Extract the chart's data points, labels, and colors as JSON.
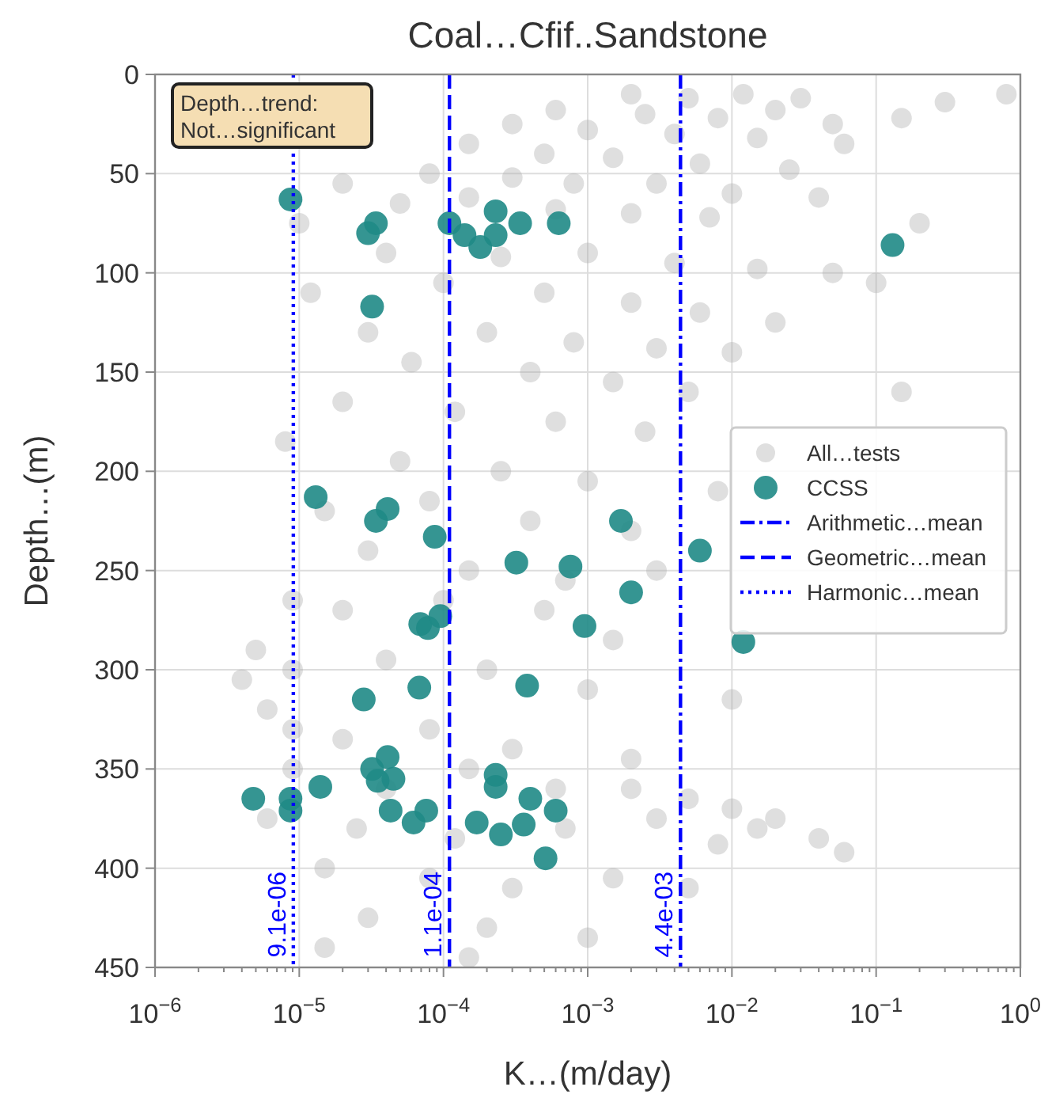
{
  "chart_data": {
    "type": "scatter",
    "title": "Coal…Cfif..Sandstone",
    "xlabel": "K…(m/day)",
    "ylabel": "Depth…(m)",
    "log": "x",
    "xlim": [
      1e-06,
      1
    ],
    "ylim": [
      450,
      0
    ],
    "xticks": [
      {
        "value": 1e-06,
        "label": "10$^{−6}$"
      },
      {
        "value": 1e-05,
        "label": "10$^{−5}$"
      },
      {
        "value": 0.0001,
        "label": "10$^{−4}$"
      },
      {
        "value": 0.001,
        "label": "10$^{−3}$"
      },
      {
        "value": 0.01,
        "label": "10$^{−2}$"
      },
      {
        "value": 0.1,
        "label": "10$^{−1}$"
      },
      {
        "value": 1,
        "label": "10$^{0}$"
      }
    ],
    "yticks": [
      0,
      50,
      100,
      150,
      200,
      250,
      300,
      350,
      400,
      450
    ],
    "grid": true,
    "legend": "right",
    "marker": "circle",
    "annotations": [
      "Depth…trend:\nNot…significant",
      {
        "text": "9.1e-06",
        "x": 9.1e-06,
        "y": 445
      },
      {
        "text": "1.1e-04",
        "x": 0.00011,
        "y": 445
      },
      {
        "text": "4.4e-03",
        "x": 0.0044,
        "y": 445
      }
    ],
    "series": [
      {
        "name": "All…tests",
        "color": "#b0b0b0",
        "x": [
          0.002,
          0.005,
          0.012,
          0.03,
          0.8,
          0.3,
          0.0006,
          0.0025,
          0.008,
          0.02,
          0.05,
          0.15,
          0.0003,
          0.001,
          0.004,
          0.015,
          0.06,
          0.00015,
          0.0005,
          0.0015,
          0.006,
          0.025,
          8e-05,
          0.0003,
          0.0008,
          0.003,
          0.01,
          0.04,
          2e-05,
          5e-05,
          0.00015,
          0.0006,
          0.002,
          0.007,
          0.2,
          1e-05,
          4e-05,
          0.00025,
          0.001,
          0.004,
          0.015,
          0.05,
          1.2e-05,
          0.0001,
          0.0005,
          0.002,
          0.006,
          0.02,
          0.1,
          3e-05,
          0.0002,
          0.0008,
          0.003,
          0.01,
          6e-05,
          0.0004,
          0.0015,
          0.005,
          0.15,
          2e-05,
          0.00012,
          0.0006,
          0.0025,
          8e-06,
          5e-05,
          0.00025,
          0.001,
          0.008,
          1.5e-05,
          8e-05,
          0.0004,
          0.002,
          3e-05,
          0.00015,
          0.0007,
          0.003,
          9e-06,
          2e-05,
          0.0001,
          0.0005,
          0.0015,
          5e-06,
          9e-06,
          4e-05,
          0.0002,
          0.001,
          0.01,
          4e-06,
          6e-06,
          9e-06,
          2e-05,
          8e-05,
          0.0003,
          0.002,
          9e-06,
          4e-05,
          0.00015,
          0.0006,
          0.002,
          0.005,
          0.01,
          0.02,
          0.015,
          0.04,
          6e-06,
          2.5e-05,
          0.00012,
          0.0007,
          0.003,
          0.008,
          0.06,
          1.5e-05,
          8e-05,
          0.0003,
          0.0015,
          0.005,
          3e-05,
          0.0002,
          0.001,
          1.5e-05,
          0.00015
        ],
        "values": [
          10,
          12,
          10,
          12,
          10,
          14,
          18,
          20,
          22,
          18,
          25,
          22,
          25,
          28,
          30,
          32,
          35,
          35,
          40,
          42,
          45,
          48,
          50,
          52,
          55,
          55,
          60,
          62,
          55,
          65,
          62,
          68,
          70,
          72,
          75,
          75,
          90,
          92,
          90,
          95,
          98,
          100,
          110,
          105,
          110,
          115,
          120,
          125,
          105,
          130,
          130,
          135,
          138,
          140,
          145,
          150,
          155,
          160,
          160,
          165,
          170,
          175,
          180,
          185,
          195,
          200,
          205,
          210,
          220,
          215,
          225,
          230,
          240,
          250,
          255,
          250,
          265,
          270,
          265,
          270,
          285,
          290,
          300,
          295,
          300,
          310,
          315,
          305,
          320,
          330,
          335,
          330,
          340,
          345,
          350,
          360,
          350,
          360,
          360,
          365,
          370,
          375,
          380,
          385,
          375,
          380,
          385,
          380,
          375,
          388,
          392,
          400,
          405,
          410,
          405,
          410,
          425,
          430,
          435,
          440,
          445
        ]
      },
      {
        "name": "CCSS",
        "color": "#1f8a86",
        "x": [
          8.7e-06,
          3.4e-05,
          3e-05,
          3.2e-05,
          0.00011,
          0.00014,
          0.00018,
          0.00023,
          0.00023,
          0.00034,
          0.00063,
          0.13,
          1.3e-05,
          4.1e-05,
          3.4e-05,
          8.7e-05,
          0.0017,
          0.006,
          0.00032,
          0.00076,
          0.002,
          6.9e-05,
          7.8e-05,
          9.5e-05,
          0.00095,
          0.012,
          2.8e-05,
          6.8e-05,
          0.00038,
          3.2e-05,
          4.1e-05,
          3.5e-05,
          4.5e-05,
          1.4e-05,
          4.8e-06,
          8.7e-06,
          8.7e-06,
          4.3e-05,
          7.6e-05,
          6.2e-05,
          0.00017,
          0.00023,
          0.00023,
          0.0004,
          0.0006,
          0.00025,
          0.00036,
          0.00051
        ],
        "values": [
          63,
          75,
          80,
          117,
          75,
          81,
          87,
          69,
          81,
          75,
          75,
          86,
          213,
          219,
          225,
          233,
          225,
          240,
          246,
          248,
          261,
          277,
          279,
          273,
          278,
          286,
          315,
          309,
          308,
          350,
          344,
          356,
          355,
          359,
          365,
          365,
          371,
          371,
          371,
          377,
          377,
          353,
          359,
          365,
          371,
          383,
          378,
          395
        ]
      },
      {
        "name": "Arithmetic…mean",
        "type": "line",
        "color": "#0000ff",
        "line_style": "dashdot",
        "marker": "none",
        "x": [
          0.0044,
          0.0044
        ],
        "values": [
          0,
          450
        ]
      },
      {
        "name": "Geometric…mean",
        "type": "line",
        "color": "#0000ff",
        "line_style": "dashed",
        "marker": "none",
        "x": [
          0.00011,
          0.00011
        ],
        "values": [
          0,
          450
        ]
      },
      {
        "name": "Harmonic…mean",
        "type": "line",
        "color": "#0000ff",
        "line_style": "dotted",
        "marker": "none",
        "x": [
          9.1e-06,
          9.1e-06
        ],
        "values": [
          0,
          450
        ]
      }
    ]
  }
}
